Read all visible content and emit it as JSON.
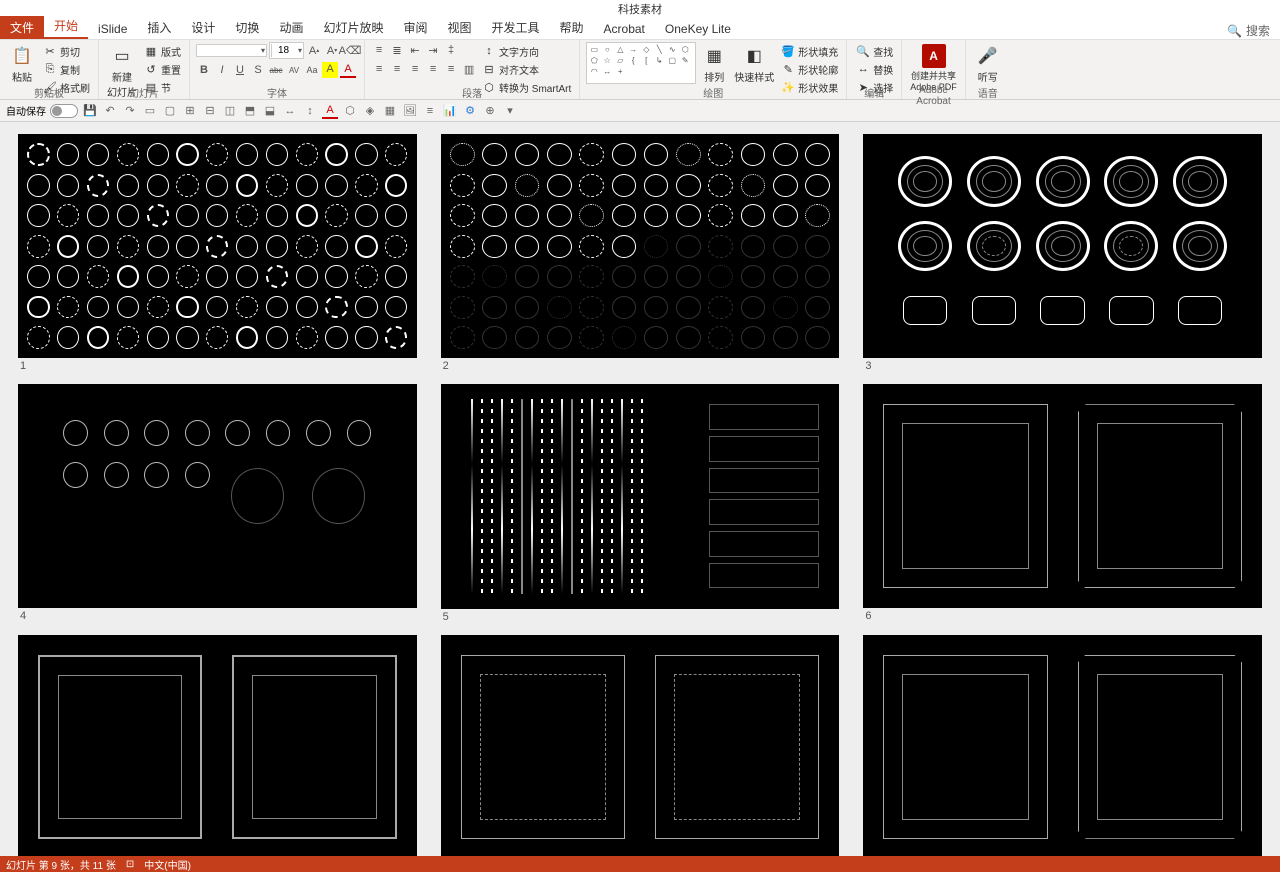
{
  "title": "科技素材",
  "tabs": {
    "file": "文件",
    "list": [
      "开始",
      "iSlide",
      "插入",
      "设计",
      "切换",
      "动画",
      "幻灯片放映",
      "审阅",
      "视图",
      "开发工具",
      "帮助",
      "Acrobat",
      "OneKey Lite"
    ],
    "active": "开始",
    "search_label": "搜索"
  },
  "ribbon": {
    "clipboard": {
      "label": "剪贴板",
      "paste": "粘贴",
      "cut": "剪切",
      "copy": "复制",
      "format_painter": "格式刷"
    },
    "slides": {
      "label": "幻灯片",
      "new_slide": "新建\n幻灯片",
      "layout": "版式",
      "reset": "重置",
      "section": "节"
    },
    "font": {
      "label": "字体",
      "name": "",
      "size": "18",
      "buttons": [
        "B",
        "I",
        "U",
        "S",
        "abc",
        "AV",
        "Aa",
        "A",
        "A"
      ]
    },
    "paragraph": {
      "label": "段落",
      "text_dir": "文字方向",
      "align_text": "对齐文本",
      "smartart": "转换为 SmartArt"
    },
    "drawing": {
      "label": "绘图",
      "arrange": "排列",
      "quick_styles": "快速样式",
      "shape_fill": "形状填充",
      "shape_outline": "形状轮廓",
      "shape_effects": "形状效果"
    },
    "editing": {
      "label": "编辑",
      "find": "查找",
      "replace": "替换",
      "select": "选择"
    },
    "adobe": {
      "label": "Adobe Acrobat",
      "create_share": "创建并共享\nAdobe PDF"
    },
    "voice": {
      "label": "语音",
      "dictate": "听写"
    }
  },
  "qat": {
    "autosave": "自动保存"
  },
  "slides_view": {
    "numbers": [
      "1",
      "2",
      "3",
      "4",
      "5",
      "6"
    ]
  },
  "status": {
    "slide_info": "幻灯片 第 9 张，共 11 张",
    "lang": "中文(中国)"
  },
  "colors": {
    "accent": "#c43e1c",
    "ribbon_bg": "#f3f2f1",
    "canvas_bg": "#eeeeee",
    "slide_bg": "#000000",
    "text": "#333333"
  }
}
